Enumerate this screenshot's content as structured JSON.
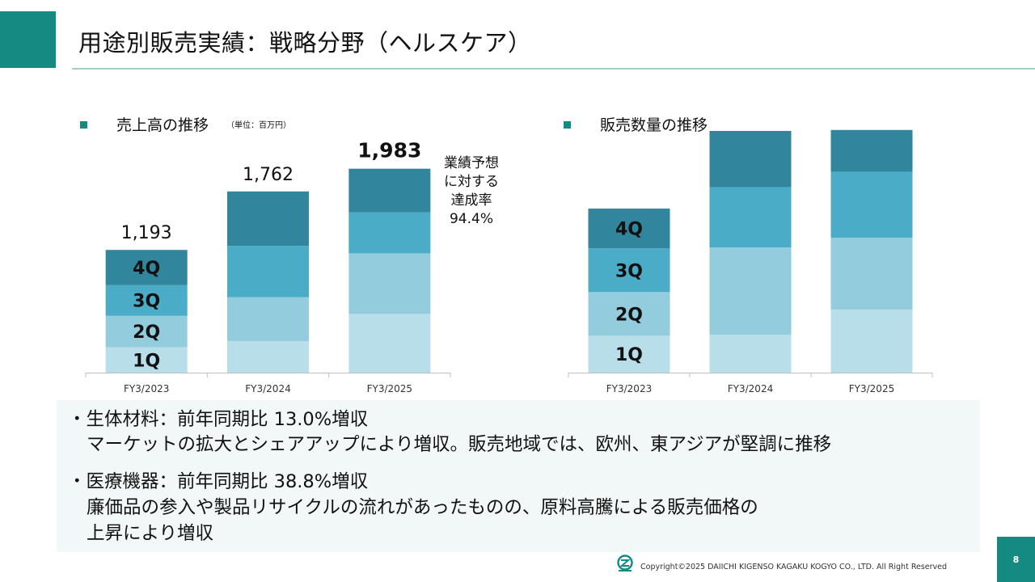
{
  "title": "用途別販売実績：戦略分野（ヘルスケア）",
  "sales_chart": {
    "heading": "売上高の推移",
    "unit_note": "（単位：百万円）"
  },
  "volume_chart": {
    "heading": "販売数量の推移"
  },
  "forecast_note": [
    "業績予想",
    "に対する",
    "達成率",
    "94.4%"
  ],
  "comments": {
    "bio_head": "・生体材料：前年同期比 13.0%増収",
    "bio_detail": "マーケットの拡大とシェアアップにより増収。販売地域では、欧州、東アジアが堅調に推移",
    "med_head": "・医療機器：前年同期比 38.8%増収",
    "med_detail_1": "廉価品の参入や製品リサイクルの流れがあったものの、原料高騰による販売価格の",
    "med_detail_2": "上昇により増収"
  },
  "footer": {
    "copyright": "Copyright©2025 DAIICHI KIGENSO KAGAKU KOGYO CO., LTD. All Right Reserved",
    "page_number": "8"
  },
  "colors": {
    "accent": "#138a82",
    "1Q": "#b8dfe9",
    "2Q": "#93cddd",
    "3Q": "#4aacc6",
    "4Q": "#31859c"
  },
  "chart_data": [
    {
      "type": "bar",
      "stacked": true,
      "title": "売上高の推移",
      "unit": "百万円",
      "categories": [
        "FY3/2023",
        "FY3/2024",
        "FY3/2025"
      ],
      "totals": [
        "1,193",
        "1,762",
        "1,983"
      ],
      "total_values": [
        1193,
        1762,
        1983
      ],
      "series": [
        {
          "name": "1Q",
          "values": [
            246,
            307,
            571
          ]
        },
        {
          "name": "2Q",
          "values": [
            306,
            426,
            589
          ]
        },
        {
          "name": "3Q",
          "values": [
            300,
            500,
            399
          ]
        },
        {
          "name": "4Q",
          "values": [
            341,
            529,
            424
          ]
        }
      ],
      "ylim": [
        0,
        2350
      ]
    },
    {
      "type": "bar",
      "stacked": true,
      "title": "販売数量の推移",
      "categories": [
        "FY3/2023",
        "FY3/2024",
        "FY3/2025"
      ],
      "series": [
        {
          "name": "1Q",
          "values": [
            38,
            39,
            65
          ]
        },
        {
          "name": "2Q",
          "values": [
            45,
            90,
            74
          ]
        },
        {
          "name": "3Q",
          "values": [
            45,
            62,
            68
          ]
        },
        {
          "name": "4Q",
          "values": [
            41,
            58,
            43
          ]
        }
      ],
      "ylim": [
        0,
        249
      ]
    }
  ]
}
